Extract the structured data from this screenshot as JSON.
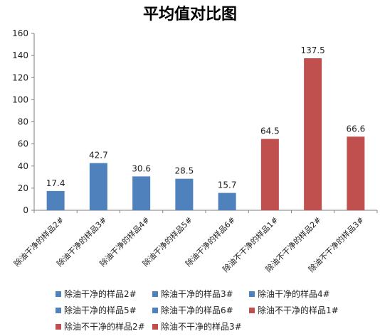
{
  "chart_data": {
    "type": "bar",
    "title": "平均值对比图",
    "categories": [
      "除油干净的样品2#",
      "除油干净的样品3#",
      "除油干净的样品4#",
      "除油干净的样品5#",
      "除油干净的样品6#",
      "除油不干净的样品1#",
      "除油不干净的样品2#",
      "除油不干净的样品3#"
    ],
    "values": [
      17.4,
      42.7,
      30.6,
      28.5,
      15.7,
      64.5,
      137.5,
      66.6
    ],
    "value_labels": [
      "17.4",
      "42.7",
      "30.6",
      "28.5",
      "15.7",
      "64.5",
      "137.5",
      "66.6"
    ],
    "colors": [
      "#4f81bd",
      "#4f81bd",
      "#4f81bd",
      "#4f81bd",
      "#4f81bd",
      "#c0504d",
      "#c0504d",
      "#c0504d"
    ],
    "ylim": [
      0,
      160
    ],
    "yticks": [
      0,
      20,
      40,
      60,
      80,
      100,
      120,
      140,
      160
    ],
    "grid": false,
    "legend_position": "bottom"
  }
}
